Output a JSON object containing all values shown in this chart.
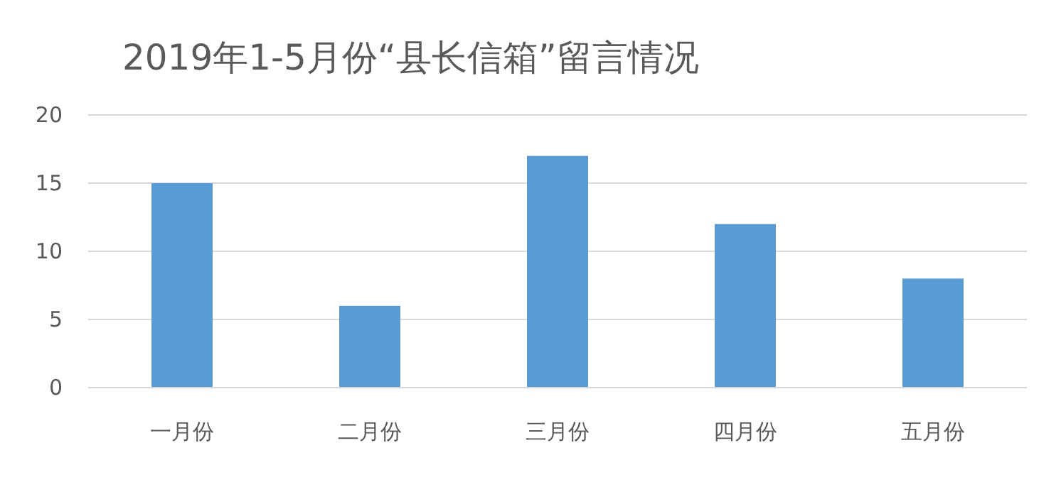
{
  "chart_data": {
    "type": "bar",
    "title": "2019年1-5月份“县长信箱”留言情况",
    "categories": [
      "一月份",
      "二月份",
      "三月份",
      "四月份",
      "五月份"
    ],
    "values": [
      15,
      6,
      17,
      12,
      8
    ],
    "color": "#5b9bd5",
    "ylim": [
      0,
      20
    ],
    "yticks": [
      0,
      5,
      10,
      15,
      20
    ],
    "grid": "y"
  }
}
